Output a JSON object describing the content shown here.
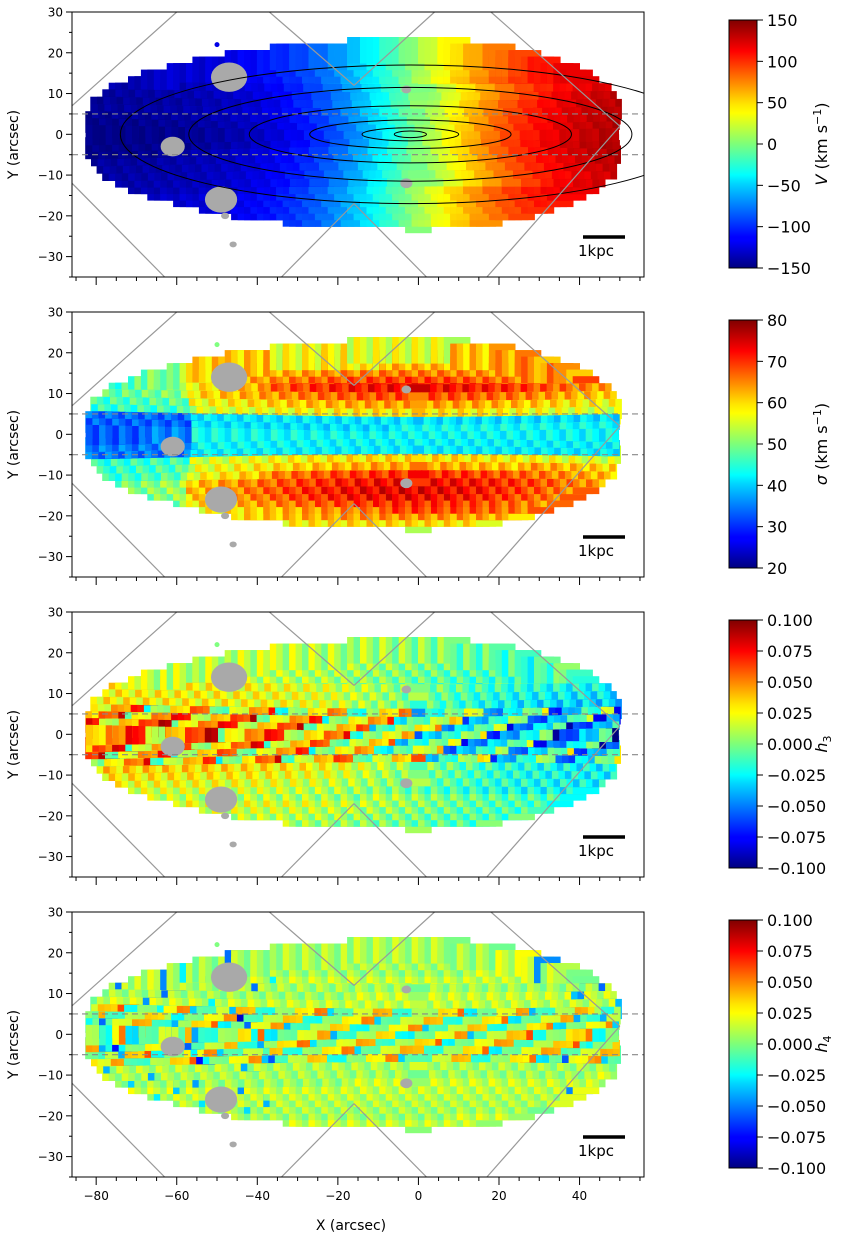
{
  "figure": {
    "xlabel": "X (arcsec)",
    "ylabel": "Y (arcsec)",
    "scalebar_label": "1kpc",
    "xlim": [
      -86,
      56
    ],
    "ylim": [
      -35,
      30
    ],
    "x_ticks": [
      -80,
      -60,
      -40,
      -20,
      0,
      20,
      40
    ],
    "y_ticks": [
      -30,
      -20,
      -10,
      0,
      10,
      20,
      30
    ],
    "dashed_lines_y": [
      5,
      -5
    ],
    "masked_color": "#a9a9a9",
    "colormap": "jet"
  },
  "chart_data": [
    {
      "type": "heatmap",
      "name": "V",
      "colorbar": {
        "label_symbol": "V",
        "label_units": " (km s",
        "label_sup": "−1",
        "label_close": ")",
        "range": [
          -150,
          150
        ],
        "ticks": [
          "150",
          "100",
          "50",
          "0",
          "−50",
          "−100",
          "−150"
        ],
        "tick_values": [
          150,
          100,
          50,
          0,
          -50,
          -100,
          -150
        ]
      },
      "has_contours": true
    },
    {
      "type": "heatmap",
      "name": "sigma",
      "colorbar": {
        "label_symbol": "σ",
        "label_units": " (km s",
        "label_sup": "−1",
        "label_close": ")",
        "range": [
          20,
          80
        ],
        "ticks": [
          "80",
          "70",
          "60",
          "50",
          "40",
          "30",
          "20"
        ],
        "tick_values": [
          80,
          70,
          60,
          50,
          40,
          30,
          20
        ]
      },
      "has_contours": false
    },
    {
      "type": "heatmap",
      "name": "h3",
      "colorbar": {
        "label_symbol": "h",
        "label_sub": "3",
        "range": [
          -0.1,
          0.1
        ],
        "ticks": [
          "0.100",
          "0.075",
          "0.050",
          "0.025",
          "0.000",
          "−0.025",
          "−0.050",
          "−0.075",
          "−0.100"
        ],
        "tick_values": [
          0.1,
          0.075,
          0.05,
          0.025,
          0,
          -0.025,
          -0.05,
          -0.075,
          -0.1
        ]
      },
      "has_contours": false
    },
    {
      "type": "heatmap",
      "name": "h4",
      "colorbar": {
        "label_symbol": "h",
        "label_sub": "4",
        "range": [
          -0.1,
          0.1
        ],
        "ticks": [
          "0.100",
          "0.075",
          "0.050",
          "0.025",
          "0.000",
          "−0.025",
          "−0.050",
          "−0.075",
          "−0.100"
        ],
        "tick_values": [
          0.1,
          0.075,
          0.05,
          0.025,
          0,
          -0.025,
          -0.05,
          -0.075,
          -0.1
        ]
      },
      "has_contours": false
    }
  ]
}
